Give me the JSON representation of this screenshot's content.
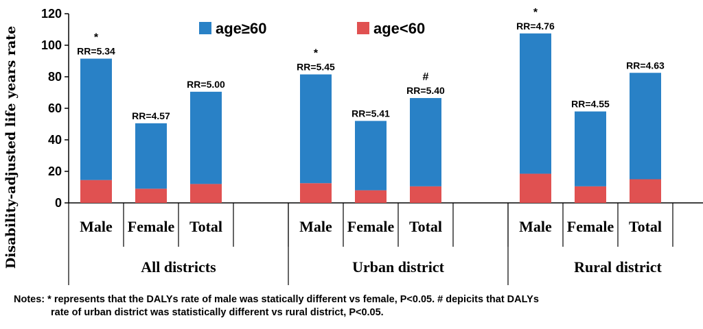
{
  "chart_data": {
    "type": "bar",
    "stacked": true,
    "ylabel": "Disability-adjusted life years rate",
    "ylim": [
      0,
      120
    ],
    "yticks": [
      0,
      20,
      40,
      60,
      80,
      100,
      120
    ],
    "legend": {
      "placement": "top"
    },
    "colors": {
      "age_ge_60": "#2981C6",
      "age_lt_60": "#E05151"
    },
    "series": [
      {
        "name": "age≥60",
        "key": "age_ge_60"
      },
      {
        "name": "age<60",
        "key": "age_lt_60"
      }
    ],
    "groups": [
      {
        "label": "All districts",
        "bars": [
          {
            "category": "Male",
            "age_lt_60": 14.5,
            "age_ge_60": 77,
            "rr": "RR=5.34",
            "mark": "*"
          },
          {
            "category": "Female",
            "age_lt_60": 9,
            "age_ge_60": 41.5,
            "rr": "RR=4.57",
            "mark": ""
          },
          {
            "category": "Total",
            "age_lt_60": 12,
            "age_ge_60": 58.5,
            "rr": "RR=5.00",
            "mark": ""
          }
        ]
      },
      {
        "label": "Urban district",
        "bars": [
          {
            "category": "Male",
            "age_lt_60": 12.5,
            "age_ge_60": 69,
            "rr": "RR=5.45",
            "mark": "*"
          },
          {
            "category": "Female",
            "age_lt_60": 8,
            "age_ge_60": 44,
            "rr": "RR=5.41",
            "mark": ""
          },
          {
            "category": "Total",
            "age_lt_60": 10.5,
            "age_ge_60": 56,
            "rr": "RR=5.40",
            "mark": "#"
          }
        ]
      },
      {
        "label": "Rural district",
        "bars": [
          {
            "category": "Male",
            "age_lt_60": 18.5,
            "age_ge_60": 89,
            "rr": "RR=4.76",
            "mark": "*"
          },
          {
            "category": "Female",
            "age_lt_60": 10.5,
            "age_ge_60": 47.5,
            "rr": "RR=4.55",
            "mark": ""
          },
          {
            "category": "Total",
            "age_lt_60": 15,
            "age_ge_60": 67.5,
            "rr": "RR=4.63",
            "mark": ""
          }
        ]
      }
    ]
  },
  "notes": {
    "line1": "Notes: * represents that the DALYs rate  of male was statically different vs female, P<0.05. #  depicits that DALYs",
    "line2": "rate of urban district  was statistically different vs rural district, P<0.05."
  }
}
